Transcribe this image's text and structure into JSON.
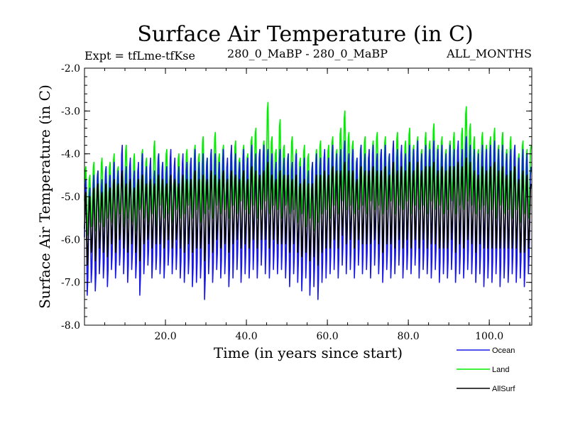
{
  "chart_data": {
    "type": "line",
    "title": "Surface Air Temperature (in C)",
    "subtitle_left": "Expt = tfLme-tfKse",
    "subtitle_center": "280_0_MaBP - 280_0_MaBP",
    "subtitle_right": "ALL_MONTHS",
    "xlabel": "Time (in years since start)",
    "ylabel": "Surface Air Temperature (in C)",
    "xlim": [
      0,
      110.5
    ],
    "ylim": [
      -8.0,
      -2.0
    ],
    "xticks": [
      20.0,
      40.0,
      60.0,
      80.0,
      100.0
    ],
    "xtick_labels": [
      "20.0",
      "40.0",
      "60.0",
      "80.0",
      "100.0"
    ],
    "yticks": [
      -2.0,
      -3.0,
      -4.0,
      -5.0,
      -6.0,
      -7.0,
      -8.0
    ],
    "ytick_labels": [
      "-2.0",
      "-3.0",
      "-4.0",
      "-5.0",
      "-6.0",
      "-7.0",
      "-8.0"
    ],
    "sampling": {
      "start": 0.0,
      "step": 0.1667,
      "periods_per_year": 1
    },
    "series": [
      {
        "name": "Land",
        "color": "#00ee00",
        "summer": [
          -4.3,
          -4.5,
          -4.2,
          -4.4,
          -4.1,
          -4.3,
          -4.2,
          -4.0,
          -4.3,
          -4.1,
          -3.8,
          -4.2,
          -4.0,
          -4.3,
          -3.9,
          -4.1,
          -4.2,
          -3.7,
          -4.0,
          -4.2,
          -3.9,
          -4.1,
          -4.3,
          -4.0,
          -4.2,
          -3.9,
          -4.1,
          -3.8,
          -4.0,
          -3.6,
          -4.1,
          -3.9,
          -3.5,
          -4.0,
          -3.8,
          -4.2,
          -3.9,
          -3.7,
          -4.1,
          -3.8,
          -4.0,
          -3.6,
          -3.4,
          -3.9,
          -3.7,
          -2.8,
          -3.6,
          -3.9,
          -3.2,
          -3.8,
          -4.0,
          -3.6,
          -3.9,
          -4.1,
          -3.8,
          -4.0,
          -4.2,
          -3.9,
          -3.7,
          -4.0,
          -3.8,
          -3.6,
          -3.9,
          -3.4,
          -3.0,
          -3.5,
          -3.7,
          -4.1,
          -3.8,
          -3.6,
          -4.0,
          -3.7,
          -3.5,
          -3.9,
          -3.6,
          -4.0,
          -3.8,
          -3.5,
          -3.9,
          -3.7,
          -3.4,
          -3.8,
          -3.6,
          -3.9,
          -3.5,
          -3.7,
          -3.3,
          -3.8,
          -3.6,
          -3.9,
          -3.7,
          -3.5,
          -3.8,
          -3.4,
          -2.9,
          -3.3,
          -3.6,
          -3.9,
          -3.5,
          -3.8,
          -3.6,
          -3.4,
          -3.8,
          -3.5,
          -3.9,
          -3.6,
          -3.8,
          -4.0,
          -3.7,
          -3.9,
          -3.8
        ],
        "winter": [
          -5.9,
          -5.7,
          -5.8,
          -5.6,
          -5.7,
          -5.5,
          -5.6,
          -5.8,
          -5.4,
          -5.7,
          -5.5,
          -5.6,
          -5.8,
          -5.3,
          -5.5,
          -5.6,
          -5.4,
          -5.7,
          -5.2,
          -5.5,
          -5.4,
          -5.6,
          -5.3,
          -5.5,
          -5.4,
          -5.2,
          -5.5,
          -5.3,
          -5.6,
          -5.4,
          -5.3,
          -5.5,
          -5.2,
          -5.4,
          -5.3,
          -5.5,
          -5.2,
          -5.4,
          -5.1,
          -5.3,
          -5.4,
          -5.2,
          -5.5,
          -5.3,
          -5.1,
          -5.4,
          -5.2,
          -5.3,
          -5.5,
          -5.2,
          -5.4,
          -5.3,
          -5.6,
          -5.4,
          -5.7,
          -5.5,
          -5.8,
          -5.6,
          -5.4,
          -5.3,
          -5.5,
          -5.2,
          -5.4,
          -5.1,
          -5.3,
          -5.2,
          -5.4,
          -5.3,
          -5.2,
          -5.4,
          -5.1,
          -5.3,
          -5.2,
          -5.4,
          -5.3,
          -5.1,
          -5.4,
          -5.2,
          -5.3,
          -5.1,
          -5.4,
          -5.2,
          -5.3,
          -5.2,
          -5.4,
          -5.1,
          -5.3,
          -5.2,
          -5.4,
          -5.3,
          -5.1,
          -5.4,
          -5.2,
          -5.3,
          -5.1,
          -5.2,
          -5.4,
          -5.3,
          -5.2,
          -5.4,
          -5.3,
          -5.5,
          -5.2,
          -5.4,
          -5.3,
          -5.5,
          -5.3,
          -5.6,
          -5.4,
          -5.5,
          -5.6
        ]
      },
      {
        "name": "Ocean",
        "color": "#1818e8",
        "summer": [
          -4.6,
          -4.8,
          -4.5,
          -4.4,
          -4.6,
          -4.3,
          -4.5,
          -4.2,
          -4.4,
          -3.8,
          -4.3,
          -4.1,
          -4.4,
          -4.2,
          -4.0,
          -4.3,
          -4.1,
          -4.4,
          -4.0,
          -4.2,
          -4.3,
          -3.9,
          -4.1,
          -4.3,
          -4.0,
          -4.2,
          -4.1,
          -3.9,
          -4.2,
          -4.0,
          -4.1,
          -3.9,
          -4.0,
          -4.2,
          -3.9,
          -4.1,
          -3.8,
          -4.0,
          -4.2,
          -3.9,
          -4.1,
          -3.8,
          -4.0,
          -3.9,
          -3.8,
          -3.9,
          -4.0,
          -4.2,
          -3.9,
          -4.1,
          -4.0,
          -4.2,
          -4.0,
          -4.3,
          -4.1,
          -4.4,
          -4.2,
          -4.0,
          -4.1,
          -3.9,
          -4.1,
          -3.8,
          -4.0,
          -3.9,
          -3.7,
          -4.0,
          -3.9,
          -4.1,
          -3.8,
          -4.0,
          -3.9,
          -3.8,
          -4.0,
          -3.9,
          -3.8,
          -4.0,
          -3.7,
          -3.9,
          -3.8,
          -4.0,
          -3.8,
          -3.9,
          -3.7,
          -4.0,
          -3.8,
          -3.9,
          -3.7,
          -3.9,
          -3.8,
          -4.0,
          -3.8,
          -3.9,
          -3.7,
          -3.9,
          -3.6,
          -3.8,
          -3.9,
          -4.0,
          -3.8,
          -3.9,
          -3.8,
          -3.7,
          -3.9,
          -3.8,
          -4.0,
          -3.9,
          -3.8,
          -4.1,
          -3.9,
          -4.0,
          -4.3
        ],
        "winter": [
          -7.3,
          -7.0,
          -7.2,
          -6.8,
          -6.9,
          -7.1,
          -6.7,
          -6.9,
          -6.6,
          -6.8,
          -7.0,
          -6.7,
          -6.9,
          -7.3,
          -6.8,
          -6.6,
          -6.9,
          -6.7,
          -6.8,
          -6.9,
          -6.6,
          -6.8,
          -6.7,
          -6.9,
          -7.0,
          -6.8,
          -7.1,
          -7.0,
          -6.9,
          -7.4,
          -6.8,
          -7.0,
          -6.7,
          -6.9,
          -6.8,
          -7.1,
          -6.9,
          -6.7,
          -7.0,
          -6.8,
          -6.9,
          -6.7,
          -6.9,
          -6.6,
          -6.8,
          -6.9,
          -6.7,
          -6.8,
          -6.7,
          -6.9,
          -7.1,
          -6.8,
          -7.0,
          -7.2,
          -6.9,
          -7.3,
          -7.1,
          -7.4,
          -7.0,
          -6.9,
          -6.8,
          -6.7,
          -6.9,
          -6.6,
          -6.8,
          -6.7,
          -6.9,
          -6.6,
          -6.8,
          -6.7,
          -6.9,
          -6.6,
          -6.8,
          -7.0,
          -6.7,
          -6.9,
          -6.8,
          -6.6,
          -6.9,
          -6.7,
          -6.8,
          -6.6,
          -6.9,
          -6.7,
          -6.8,
          -6.9,
          -6.7,
          -7.0,
          -6.8,
          -6.9,
          -6.7,
          -7.0,
          -6.8,
          -6.9,
          -6.7,
          -6.8,
          -7.0,
          -6.8,
          -7.1,
          -6.9,
          -7.0,
          -6.8,
          -7.1,
          -6.9,
          -7.0,
          -6.8,
          -7.0,
          -6.9,
          -7.1,
          -6.8,
          -6.9
        ]
      },
      {
        "name": "AllSurf",
        "color": "#000000",
        "summer": [
          -4.9,
          -5.0,
          -4.8,
          -4.7,
          -4.9,
          -4.7,
          -4.8,
          -4.6,
          -4.7,
          -4.4,
          -4.7,
          -4.6,
          -4.8,
          -4.6,
          -4.5,
          -4.7,
          -4.6,
          -4.7,
          -4.5,
          -4.6,
          -4.7,
          -4.5,
          -4.6,
          -4.7,
          -4.5,
          -4.6,
          -4.6,
          -4.4,
          -4.6,
          -4.5,
          -4.6,
          -4.4,
          -4.5,
          -4.6,
          -4.4,
          -4.6,
          -4.4,
          -4.5,
          -4.6,
          -4.4,
          -4.6,
          -4.3,
          -4.4,
          -4.5,
          -4.4,
          -4.2,
          -4.5,
          -4.6,
          -4.4,
          -4.5,
          -4.5,
          -4.6,
          -4.5,
          -4.7,
          -4.6,
          -4.7,
          -4.7,
          -4.5,
          -4.5,
          -4.4,
          -4.5,
          -4.3,
          -4.4,
          -4.4,
          -4.2,
          -4.4,
          -4.4,
          -4.6,
          -4.3,
          -4.4,
          -4.4,
          -4.3,
          -4.4,
          -4.4,
          -4.3,
          -4.5,
          -4.2,
          -4.4,
          -4.3,
          -4.4,
          -4.2,
          -4.4,
          -4.2,
          -4.4,
          -4.3,
          -4.3,
          -4.2,
          -4.4,
          -4.3,
          -4.4,
          -4.3,
          -4.3,
          -4.2,
          -4.3,
          -4.1,
          -4.2,
          -4.4,
          -4.5,
          -4.3,
          -4.4,
          -4.3,
          -4.2,
          -4.4,
          -4.3,
          -4.5,
          -4.4,
          -4.3,
          -4.6,
          -4.4,
          -4.5,
          -4.7
        ],
        "winter": [
          -6.6,
          -6.3,
          -6.5,
          -6.2,
          -6.3,
          -6.4,
          -6.1,
          -6.3,
          -6.0,
          -6.2,
          -6.3,
          -6.1,
          -6.3,
          -6.5,
          -6.1,
          -6.0,
          -6.2,
          -6.1,
          -6.1,
          -6.2,
          -6.0,
          -6.2,
          -6.0,
          -6.2,
          -6.3,
          -6.1,
          -6.3,
          -6.2,
          -6.2,
          -6.5,
          -6.1,
          -6.3,
          -6.0,
          -6.2,
          -6.1,
          -6.3,
          -6.1,
          -6.0,
          -6.2,
          -6.1,
          -6.2,
          -6.0,
          -6.2,
          -6.0,
          -6.0,
          -6.2,
          -6.0,
          -6.1,
          -6.1,
          -6.1,
          -6.3,
          -6.1,
          -6.3,
          -6.4,
          -6.3,
          -6.5,
          -6.4,
          -6.6,
          -6.3,
          -6.2,
          -6.2,
          -6.0,
          -6.2,
          -5.9,
          -6.1,
          -6.0,
          -6.2,
          -6.0,
          -6.1,
          -6.1,
          -6.1,
          -6.0,
          -6.1,
          -6.3,
          -6.1,
          -6.1,
          -6.2,
          -6.0,
          -6.2,
          -6.0,
          -6.2,
          -6.0,
          -6.2,
          -6.0,
          -6.2,
          -6.1,
          -6.1,
          -6.2,
          -6.2,
          -6.2,
          -6.0,
          -6.3,
          -6.1,
          -6.2,
          -6.0,
          -6.1,
          -6.3,
          -6.1,
          -6.2,
          -6.2,
          -6.2,
          -6.2,
          -6.2,
          -6.2,
          -6.2,
          -6.2,
          -6.2,
          -6.3,
          -6.3,
          -6.2,
          -6.3
        ]
      }
    ],
    "legend": {
      "position": "bottom-right",
      "items": [
        {
          "label": "Ocean",
          "color": "#1818e8"
        },
        {
          "label": "Land",
          "color": "#00ee00"
        },
        {
          "label": "AllSurf",
          "color": "#000000"
        }
      ]
    }
  }
}
